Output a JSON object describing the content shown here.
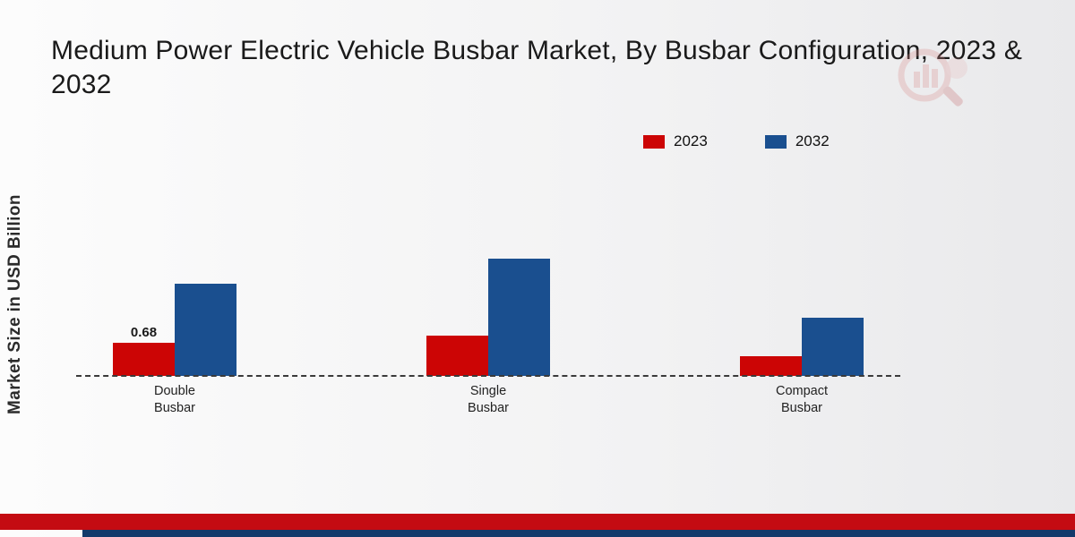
{
  "title": "Medium Power Electric Vehicle Busbar Market, By Busbar Configuration, 2023 & 2032",
  "y_axis_label": "Market Size in USD Billion",
  "legend": [
    {
      "label": "2023",
      "color": "#cc0505"
    },
    {
      "label": "2032",
      "color": "#1a4f8f"
    }
  ],
  "colors": {
    "series_2023": "#cc0505",
    "series_2032": "#1a4f8f",
    "footer_red": "#c40b12",
    "footer_blue": "#123a6b",
    "watermark_pink": "#d98a8a"
  },
  "chart_data": {
    "type": "bar",
    "title": "Medium Power Electric Vehicle Busbar Market, By Busbar Configuration, 2023 & 2032",
    "xlabel": "",
    "ylabel": "Market Size in USD Billion",
    "categories": [
      "Double\nBusbar",
      "Single\nBusbar",
      "Compact\nBusbar"
    ],
    "series": [
      {
        "name": "2023",
        "color": "#cc0505",
        "values": [
          0.68,
          0.82,
          0.4
        ]
      },
      {
        "name": "2032",
        "color": "#1a4f8f",
        "values": [
          1.9,
          2.4,
          1.2
        ]
      }
    ],
    "annotations": [
      {
        "series": "2023",
        "category_index": 0,
        "text": "0.68"
      }
    ],
    "ylim": [
      0,
      2.6
    ],
    "grid": false,
    "legend_position": "top-right",
    "baseline": "dashed"
  }
}
